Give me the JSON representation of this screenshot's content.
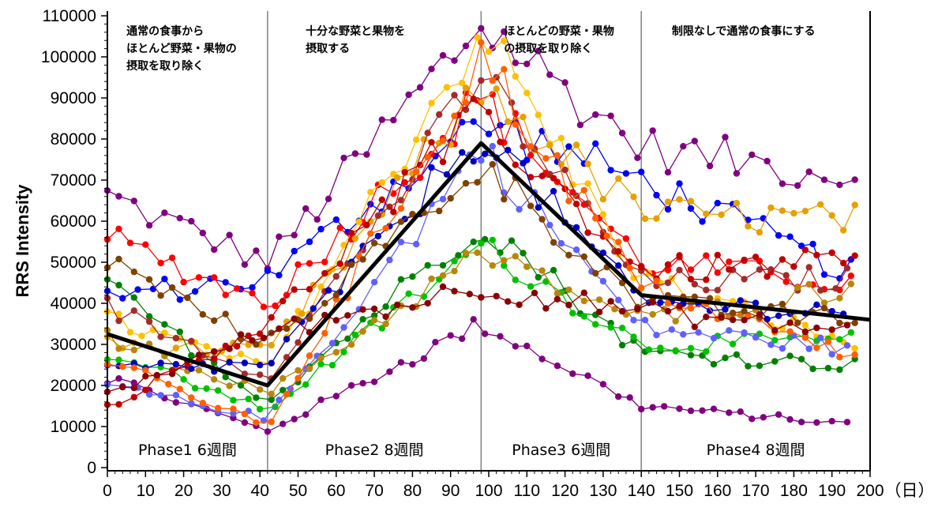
{
  "chart_data": {
    "type": "line",
    "ylabel": "RRS Intensity",
    "x_unit": "（日）",
    "xlim": [
      0,
      200
    ],
    "ylim": [
      0,
      110000
    ],
    "x_ticks": [
      0,
      10,
      20,
      30,
      40,
      50,
      60,
      70,
      80,
      90,
      100,
      110,
      120,
      130,
      140,
      150,
      160,
      170,
      180,
      190,
      200
    ],
    "y_ticks": [
      0,
      10000,
      20000,
      30000,
      40000,
      50000,
      60000,
      70000,
      80000,
      90000,
      100000,
      110000
    ],
    "phase_boundaries": [
      42,
      98,
      140
    ],
    "annotations": [
      {
        "lines": [
          "通常の食事から",
          "ほとんど野菜・果物の",
          "摂取を取り除く"
        ],
        "x": 5
      },
      {
        "lines": [
          "十分な野菜と果物を",
          "摂取する"
        ],
        "x": 52
      },
      {
        "lines": [
          "ほとんどの野菜・果物",
          "の摂取を取り除く"
        ],
        "x": 104
      },
      {
        "lines": [
          "制限なしで通常の食事にする"
        ],
        "x": 148
      }
    ],
    "phase_labels": [
      {
        "text": "Phase1  6週間",
        "x": 21
      },
      {
        "text": "Phase2  8週間",
        "x": 70
      },
      {
        "text": "Phase3  6週間",
        "x": 119
      },
      {
        "text": "Phase4  8週間",
        "x": 170
      }
    ],
    "mean_line": {
      "x": [
        0,
        42,
        98,
        140,
        200
      ],
      "y": [
        32500,
        20000,
        79000,
        42000,
        36000
      ],
      "color": "#000000"
    },
    "subject_series": [
      {
        "color": "#800080",
        "x": [
          0,
          42,
          98,
          140,
          196
        ],
        "y": [
          66000,
          50000,
          108000,
          78000,
          71000
        ]
      },
      {
        "color": "#800080",
        "x": [
          0,
          42,
          98,
          140,
          196
        ],
        "y": [
          22000,
          9000,
          35000,
          15000,
          10500
        ]
      },
      {
        "color": "#0000ff",
        "x": [
          0,
          42,
          98,
          140,
          196
        ],
        "y": [
          42000,
          46000,
          84000,
          70000,
          47000
        ]
      },
      {
        "color": "#ff0000",
        "x": [
          0,
          42,
          98,
          140,
          196
        ],
        "y": [
          56000,
          40000,
          90000,
          50000,
          45000
        ]
      },
      {
        "color": "#ffc000",
        "x": [
          0,
          42,
          98,
          140,
          196
        ],
        "y": [
          36000,
          24000,
          107000,
          46000,
          30000
        ]
      },
      {
        "color": "#e6a000",
        "x": [
          0,
          42,
          98,
          140,
          196
        ],
        "y": [
          30000,
          28000,
          92000,
          62000,
          60000
        ]
      },
      {
        "color": "#008000",
        "x": [
          0,
          42,
          98,
          140,
          196
        ],
        "y": [
          44000,
          16000,
          60000,
          28000,
          25000
        ]
      },
      {
        "color": "#00c000",
        "x": [
          0,
          42,
          98,
          140,
          196
        ],
        "y": [
          28000,
          14000,
          54000,
          30000,
          31000
        ]
      },
      {
        "color": "#6060ff",
        "x": [
          0,
          42,
          98,
          140,
          196
        ],
        "y": [
          20000,
          12000,
          78000,
          34000,
          29000
        ]
      },
      {
        "color": "#a52a2a",
        "x": [
          0,
          42,
          98,
          140,
          196
        ],
        "y": [
          39000,
          22000,
          95000,
          45000,
          46000
        ]
      },
      {
        "color": "#b8860b",
        "x": [
          0,
          42,
          98,
          140,
          196
        ],
        "y": [
          32000,
          18000,
          52000,
          36000,
          44000
        ]
      },
      {
        "color": "#c00000",
        "x": [
          0,
          42,
          98,
          140,
          196
        ],
        "y": [
          15000,
          35000,
          86000,
          48000,
          50000
        ]
      },
      {
        "color": "#0000c0",
        "x": [
          0,
          42,
          98,
          140,
          196
        ],
        "y": [
          24000,
          25000,
          82000,
          40000,
          38000
        ]
      },
      {
        "color": "#ff6000",
        "x": [
          0,
          42,
          98,
          140,
          196
        ],
        "y": [
          26000,
          10000,
          100000,
          44000,
          27000
        ]
      },
      {
        "color": "#804000",
        "x": [
          0,
          42,
          98,
          140,
          196
        ],
        "y": [
          50000,
          30000,
          74000,
          40000,
          36000
        ]
      },
      {
        "color": "#8b0000",
        "x": [
          0,
          42,
          98,
          140,
          196
        ],
        "y": [
          18000,
          33000,
          44000,
          38000,
          33000
        ]
      }
    ]
  }
}
